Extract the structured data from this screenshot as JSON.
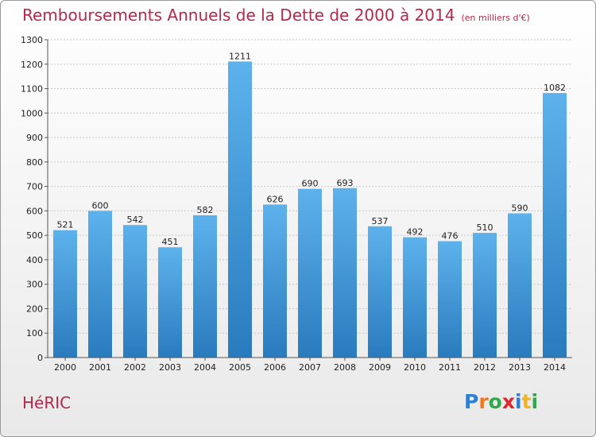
{
  "title": "Remboursements Annuels de la Dette de 2000 à 2014",
  "unit": "(en milliers d'€)",
  "commune": "HéRIC",
  "logo": {
    "text": "Proxiti",
    "letters": [
      {
        "char": "P",
        "color": "#2f7fd0"
      },
      {
        "char": "r",
        "color": "#f07a1a"
      },
      {
        "char": "o",
        "color": "#2fa84a"
      },
      {
        "char": "x",
        "color": "#e2262b"
      },
      {
        "char": "i",
        "color": "#2f7fd0"
      },
      {
        "char": "t",
        "color": "#f2b41d"
      },
      {
        "char": "i",
        "color": "#2fa84a"
      }
    ]
  },
  "colors": {
    "title": "#b5284b",
    "bar_top": "#5db2ec",
    "bar_bottom": "#2a7bbd",
    "grid": "#c8c8c8"
  },
  "chart_data": {
    "type": "bar",
    "categories": [
      "2000",
      "2001",
      "2002",
      "2003",
      "2004",
      "2005",
      "2006",
      "2007",
      "2008",
      "2009",
      "2010",
      "2011",
      "2012",
      "2013",
      "2014"
    ],
    "values": [
      521,
      600,
      542,
      451,
      582,
      1211,
      626,
      690,
      693,
      537,
      492,
      476,
      510,
      590,
      1082
    ],
    "title": "Remboursements Annuels de la Dette de 2000 à 2014",
    "ylim": [
      0,
      1300
    ],
    "yticks": [
      0,
      100,
      200,
      300,
      400,
      500,
      600,
      700,
      800,
      900,
      1000,
      1100,
      1200,
      1300
    ],
    "grid": true,
    "data_labels": true
  }
}
